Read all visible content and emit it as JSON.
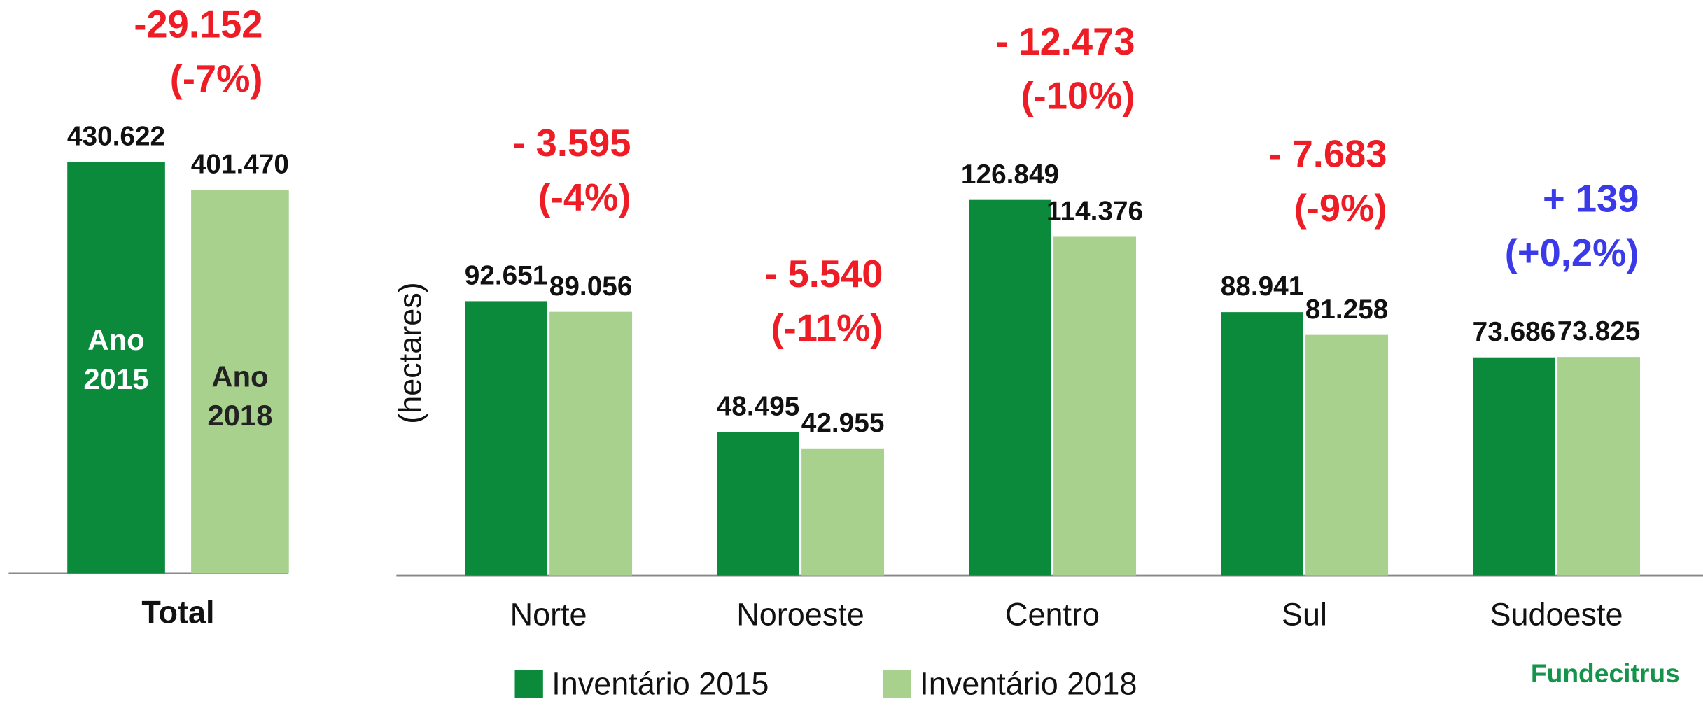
{
  "chart_data": [
    {
      "type": "bar",
      "categories": [
        "Total"
      ],
      "series": [
        {
          "name": "Ano 2015",
          "color": "#0a8a3a",
          "values": [
            430622
          ],
          "value_labels": [
            "430.622"
          ]
        },
        {
          "name": "Ano 2018",
          "color": "#a9d18e",
          "values": [
            401470
          ],
          "value_labels": [
            "401.470"
          ]
        }
      ],
      "changes": [
        {
          "text": "-29.152",
          "pct": "(-7%)",
          "color": "#ee1c25"
        }
      ],
      "ylim": [
        0,
        500000
      ]
    },
    {
      "type": "bar",
      "y_label": "(hectares)",
      "categories": [
        "Norte",
        "Noroeste",
        "Centro",
        "Sul",
        "Sudoeste"
      ],
      "series": [
        {
          "name": "Inventário 2015",
          "color": "#0a8a3a",
          "values": [
            92651,
            48495,
            126849,
            88941,
            73686
          ],
          "value_labels": [
            "92.651",
            "48.495",
            "126.849",
            "88.941",
            "73.686"
          ]
        },
        {
          "name": "Inventário 2018",
          "color": "#a9d18e",
          "values": [
            89056,
            42955,
            114376,
            81258,
            73825
          ],
          "value_labels": [
            "89.056",
            "42.955",
            "114.376",
            "81.258",
            "73.825"
          ]
        }
      ],
      "changes": [
        {
          "text": "- 3.595",
          "pct": "(-4%)",
          "color": "#ee1c25"
        },
        {
          "text": "- 5.540",
          "pct": "(-11%)",
          "color": "#ee1c25"
        },
        {
          "text": "- 12.473",
          "pct": "(-10%)",
          "color": "#ee1c25"
        },
        {
          "text": "- 7.683",
          "pct": "(-9%)",
          "color": "#ee1c25"
        },
        {
          "text": "+ 139",
          "pct": "(+0,2%)",
          "color": "#3a3ae8"
        }
      ],
      "ylim": [
        0,
        180000
      ],
      "legend": "bottom"
    }
  ],
  "logo": "Fundecitrus"
}
